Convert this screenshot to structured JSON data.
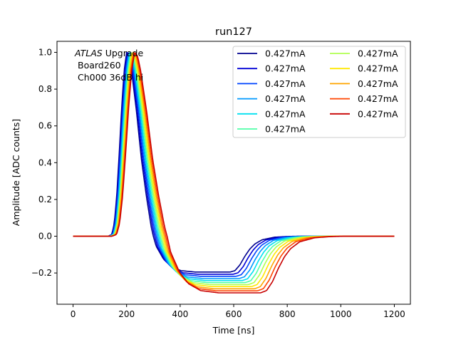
{
  "chart_data": {
    "type": "line",
    "title": "run127",
    "xlabel": "Time [ns]",
    "ylabel": "Amplitude [ADC counts]",
    "xlim": [
      -60,
      1260
    ],
    "ylim": [
      -0.37,
      1.06
    ],
    "xticks": [
      0,
      200,
      400,
      600,
      800,
      1000,
      1200
    ],
    "xtick_labels": [
      "0",
      "200",
      "400",
      "600",
      "800",
      "1000",
      "1200"
    ],
    "yticks": [
      -0.2,
      0.0,
      0.2,
      0.4,
      0.6,
      0.8,
      1.0
    ],
    "ytick_labels": [
      "−0.2",
      "0.0",
      "0.2",
      "0.4",
      "0.6",
      "0.8",
      "1.0"
    ],
    "grid": false,
    "legend_position": "top-right",
    "annotation": {
      "line1_italic": "ATLAS",
      "line1_rest": " Upgrade",
      "line2": "Board260",
      "line3": "Ch000 36dB hi"
    },
    "shape_points": [
      [
        0,
        0
      ],
      [
        125,
        0
      ],
      [
        140,
        0.01
      ],
      [
        150,
        0.07
      ],
      [
        160,
        0.22
      ],
      [
        170,
        0.45
      ],
      [
        180,
        0.7
      ],
      [
        190,
        0.9
      ],
      [
        200,
        1.0
      ],
      [
        210,
        0.98
      ],
      [
        220,
        0.9
      ],
      [
        240,
        0.68
      ],
      [
        260,
        0.42
      ],
      [
        280,
        0.22
      ],
      [
        300,
        0.05
      ],
      [
        320,
        -0.07
      ],
      [
        350,
        -0.16
      ],
      [
        380,
        -0.21
      ],
      [
        420,
        -0.24
      ],
      [
        480,
        -0.25
      ],
      [
        560,
        -0.25
      ],
      [
        620,
        -0.25
      ],
      [
        640,
        -0.24
      ],
      [
        660,
        -0.2
      ],
      [
        680,
        -0.14
      ],
      [
        700,
        -0.09
      ],
      [
        720,
        -0.055
      ],
      [
        750,
        -0.025
      ],
      [
        800,
        -0.007
      ],
      [
        850,
        -0.002
      ],
      [
        900,
        0
      ],
      [
        1200,
        0
      ]
    ],
    "series": [
      {
        "name": "0.427mA",
        "color": "#00008f",
        "t_shift": 0,
        "t_stretch": 0.92,
        "under": 0.195
      },
      {
        "name": "0.427mA",
        "color": "#0000d6",
        "t_shift": 3,
        "t_stretch": 0.94,
        "under": 0.207
      },
      {
        "name": "0.427mA",
        "color": "#0044ff",
        "t_shift": 6,
        "t_stretch": 0.96,
        "under": 0.218
      },
      {
        "name": "0.427mA",
        "color": "#0099ff",
        "t_shift": 9,
        "t_stretch": 0.98,
        "under": 0.23
      },
      {
        "name": "0.427mA",
        "color": "#00e0f0",
        "t_shift": 12,
        "t_stretch": 1.0,
        "under": 0.241
      },
      {
        "name": "0.427mA",
        "color": "#50ffa8",
        "t_shift": 15,
        "t_stretch": 1.02,
        "under": 0.252
      },
      {
        "name": "0.427mA",
        "color": "#b0ff50",
        "t_shift": 18,
        "t_stretch": 1.04,
        "under": 0.263
      },
      {
        "name": "0.427mA",
        "color": "#ffe800",
        "t_shift": 21,
        "t_stretch": 1.06,
        "under": 0.274
      },
      {
        "name": "0.427mA",
        "color": "#ffa500",
        "t_shift": 24,
        "t_stretch": 1.08,
        "under": 0.286
      },
      {
        "name": "0.427mA",
        "color": "#ff4500",
        "t_shift": 27,
        "t_stretch": 1.1,
        "under": 0.297
      },
      {
        "name": "0.427mA",
        "color": "#c80000",
        "t_shift": 30,
        "t_stretch": 1.12,
        "under": 0.308
      }
    ]
  }
}
